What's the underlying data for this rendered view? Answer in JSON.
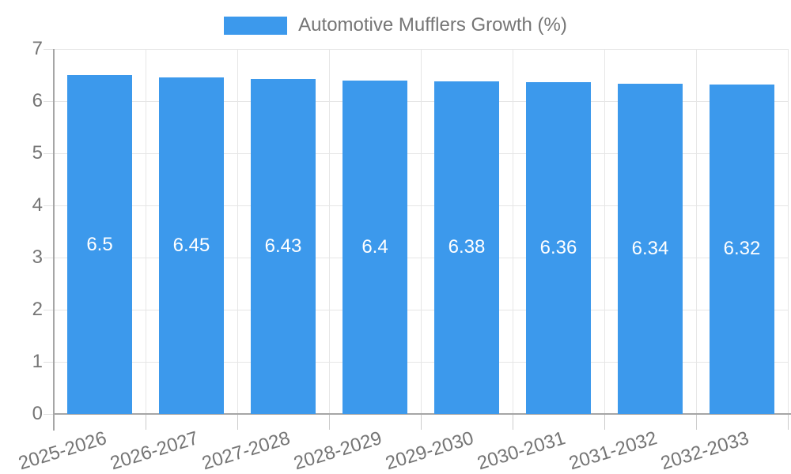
{
  "legend": {
    "label": "Automotive Mufflers Growth (%)"
  },
  "chart_data": {
    "type": "bar",
    "title": "",
    "categories": [
      "2025-2026",
      "2026-2027",
      "2027-2028",
      "2028-2029",
      "2029-2030",
      "2030-2031",
      "2031-2032",
      "2032-2033"
    ],
    "series": [
      {
        "name": "Automotive Mufflers Growth (%)",
        "values": [
          6.5,
          6.45,
          6.43,
          6.4,
          6.38,
          6.36,
          6.34,
          6.32
        ],
        "value_labels": [
          "6.5",
          "6.45",
          "6.43",
          "6.4",
          "6.38",
          "6.36",
          "6.34",
          "6.32"
        ]
      }
    ],
    "xlabel": "",
    "ylabel": "",
    "ylim": [
      0,
      7
    ],
    "yticks": [
      0,
      1,
      2,
      3,
      4,
      5,
      6,
      7
    ],
    "grid": "on",
    "legend_position": "top-center",
    "bar_color": "#3c99ec",
    "value_label_color": "#ffffff",
    "axis_color": "#a6a6a6",
    "gridline_color": "#e6e6e6",
    "text_color": "#757575"
  }
}
